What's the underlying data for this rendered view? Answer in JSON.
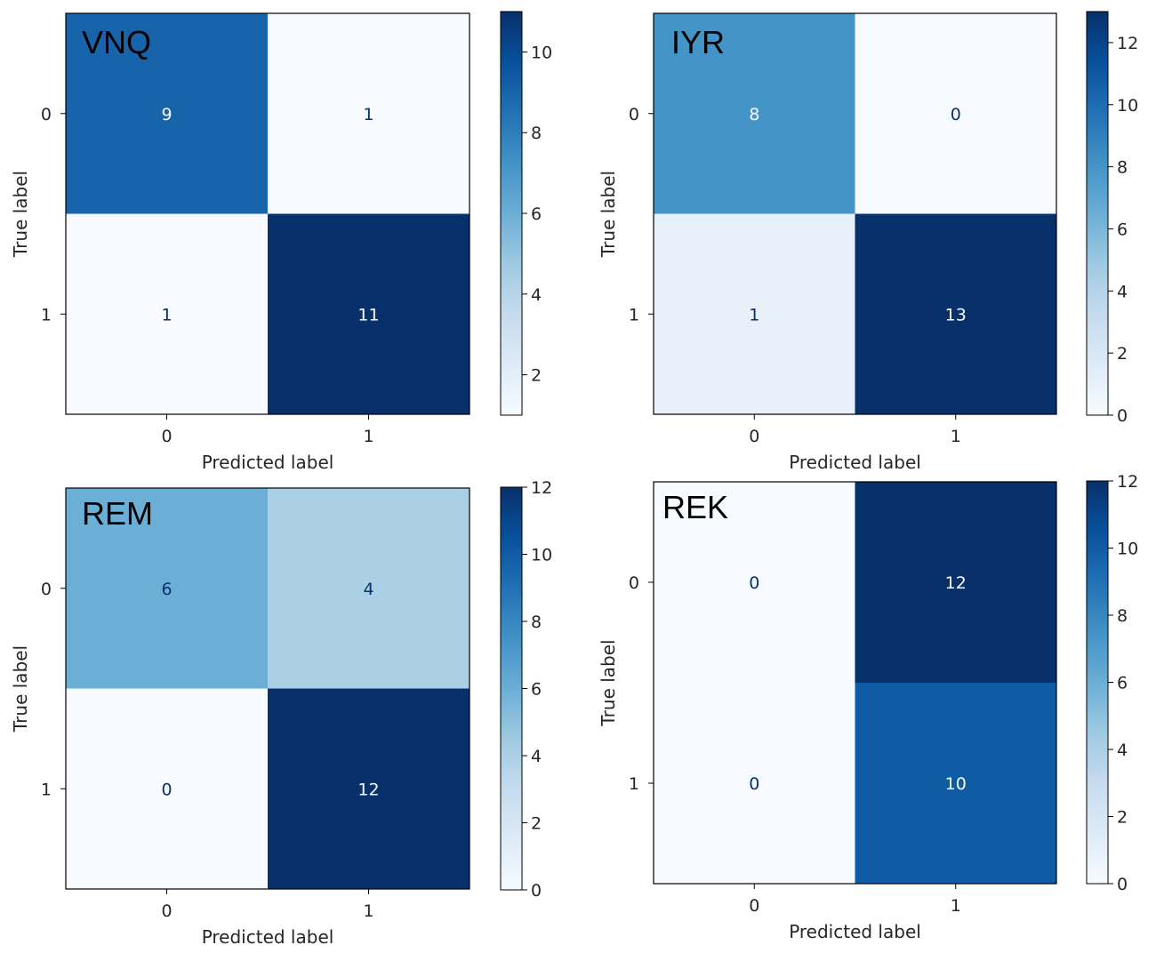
{
  "chart_data": [
    {
      "type": "heatmap",
      "title": "VNQ",
      "xlabel": "Predicted label",
      "ylabel": "True label",
      "x_categories": [
        "0",
        "1"
      ],
      "y_categories": [
        "0",
        "1"
      ],
      "values": [
        [
          9,
          1
        ],
        [
          1,
          11
        ]
      ],
      "colormap": "Blues",
      "colorbar": {
        "range": [
          1,
          11
        ],
        "ticks": [
          2,
          4,
          6,
          8,
          10
        ]
      }
    },
    {
      "type": "heatmap",
      "title": "IYR",
      "xlabel": "Predicted label",
      "ylabel": "True label",
      "x_categories": [
        "0",
        "1"
      ],
      "y_categories": [
        "0",
        "1"
      ],
      "values": [
        [
          8,
          0
        ],
        [
          1,
          13
        ]
      ],
      "colormap": "Blues",
      "colorbar": {
        "range": [
          0,
          13
        ],
        "ticks": [
          0,
          2,
          4,
          6,
          8,
          10,
          12
        ]
      }
    },
    {
      "type": "heatmap",
      "title": "REM",
      "xlabel": "Predicted label",
      "ylabel": "True label",
      "x_categories": [
        "0",
        "1"
      ],
      "y_categories": [
        "0",
        "1"
      ],
      "values": [
        [
          6,
          4
        ],
        [
          0,
          12
        ]
      ],
      "colormap": "Blues",
      "colorbar": {
        "range": [
          0,
          12
        ],
        "ticks": [
          0,
          2,
          4,
          6,
          8,
          10,
          12
        ]
      }
    },
    {
      "type": "heatmap",
      "title": "REK",
      "xlabel": "Predicted label",
      "ylabel": "True label",
      "x_categories": [
        "0",
        "1"
      ],
      "y_categories": [
        "0",
        "1"
      ],
      "values": [
        [
          0,
          12
        ],
        [
          0,
          10
        ]
      ],
      "colormap": "Blues",
      "colorbar": {
        "range": [
          0,
          12
        ],
        "ticks": [
          0,
          2,
          4,
          6,
          8,
          10,
          12
        ]
      }
    }
  ]
}
